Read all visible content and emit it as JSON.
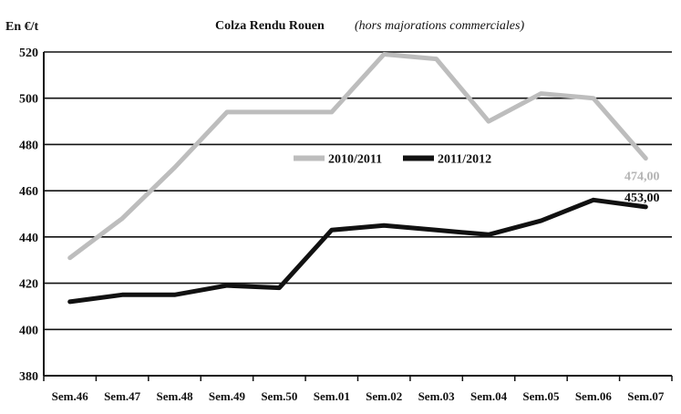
{
  "chart_data": {
    "type": "line",
    "title": "Colza Rendu Rouen",
    "subtitle": "(hors majorations commerciales)",
    "ylabel": "En €/t",
    "xlabel": "",
    "ylim": [
      380,
      520
    ],
    "yticks": [
      380,
      400,
      420,
      440,
      460,
      480,
      500,
      520
    ],
    "grid": true,
    "legend_position": "center-right",
    "categories": [
      "Sem.46",
      "Sem.47",
      "Sem.48",
      "Sem.49",
      "Sem.50",
      "Sem.01",
      "Sem.02",
      "Sem.03",
      "Sem.04",
      "Sem.05",
      "Sem.06",
      "Sem.07"
    ],
    "series": [
      {
        "name": "2010/2011",
        "color": "#bdbdbd",
        "values": [
          431,
          448,
          470,
          494,
          494,
          494,
          519,
          517,
          490,
          502,
          500,
          474
        ],
        "end_label": "474,00",
        "end_label_color": "#b5b5b5"
      },
      {
        "name": "2011/2012",
        "color": "#111111",
        "values": [
          412,
          415,
          415,
          419,
          418,
          443,
          445,
          443,
          441,
          447,
          456,
          453
        ],
        "end_label": "453,00",
        "end_label_color": "#111111"
      }
    ]
  }
}
